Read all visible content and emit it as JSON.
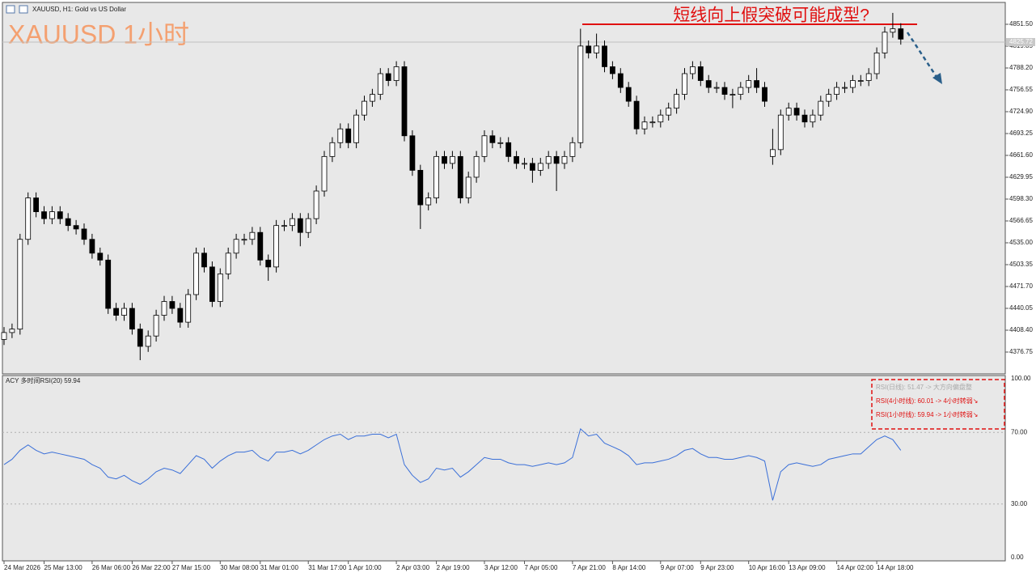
{
  "header": {
    "symbol_label": "XAUUSD, H1:  Gold vs US Dollar",
    "title": "XAUUSD 1小时"
  },
  "chart_data": [
    {
      "type": "candlestick",
      "annotation": "短线向上假突破可能成型?",
      "current_price": 4825.72,
      "ylim": [
        4345.1,
        4883.15
      ],
      "yticks": [
        {
          "value": 4851.5,
          "label": "4851.50"
        },
        {
          "value": 4819.85,
          "label": "4819.85"
        },
        {
          "value": 4788.2,
          "label": "4788.20"
        },
        {
          "value": 4756.55,
          "label": "4756.55"
        },
        {
          "value": 4724.9,
          "label": "4724.90"
        },
        {
          "value": 4693.25,
          "label": "4693.25"
        },
        {
          "value": 4661.6,
          "label": "4661.60"
        },
        {
          "value": 4629.95,
          "label": "4629.95"
        },
        {
          "value": 4598.3,
          "label": "4598.30"
        },
        {
          "value": 4566.65,
          "label": "4566.65"
        },
        {
          "value": 4535,
          "label": "4535.00"
        },
        {
          "value": 4503.35,
          "label": "4503.35"
        },
        {
          "value": 4471.7,
          "label": "4471.70"
        },
        {
          "value": 4440.05,
          "label": "4440.05"
        },
        {
          "value": 4408.4,
          "label": "4408.40"
        },
        {
          "value": 4376.75,
          "label": "4376.75"
        }
      ],
      "xticks": [
        {
          "value": 0,
          "label": "24 Mar 2026"
        },
        {
          "value": 5,
          "label": "25 Mar 13:00"
        },
        {
          "value": 11,
          "label": "26 Mar 06:00"
        },
        {
          "value": 16,
          "label": "26 Mar 22:00"
        },
        {
          "value": 21,
          "label": "27 Mar 15:00"
        },
        {
          "value": 27,
          "label": "30 Mar 08:00"
        },
        {
          "value": 32,
          "label": "31 Mar 01:00"
        },
        {
          "value": 38,
          "label": "31 Mar 17:00"
        },
        {
          "value": 43,
          "label": "1 Apr 10:00"
        },
        {
          "value": 49,
          "label": "2 Apr 03:00"
        },
        {
          "value": 54,
          "label": "2 Apr 19:00"
        },
        {
          "value": 60,
          "label": "3 Apr 12:00"
        },
        {
          "value": 65,
          "label": "7 Apr 05:00"
        },
        {
          "value": 71,
          "label": "7 Apr 21:00"
        },
        {
          "value": 76,
          "label": "8 Apr 14:00"
        },
        {
          "value": 82,
          "label": "9 Apr 07:00"
        },
        {
          "value": 87,
          "label": "9 Apr 23:00"
        },
        {
          "value": 93,
          "label": "10 Apr 16:00"
        },
        {
          "value": 98,
          "label": "13 Apr 09:00"
        },
        {
          "value": 104,
          "label": "14 Apr 02:00"
        },
        {
          "value": 109,
          "label": "14 Apr 18:00"
        }
      ],
      "open": [
        4395,
        4405,
        4410,
        4540,
        4600,
        4580,
        4570,
        4580,
        4570,
        4560,
        4555,
        4540,
        4520,
        4510,
        4440,
        4430,
        4440,
        4410,
        4385,
        4400,
        4430,
        4450,
        4440,
        4420,
        4460,
        4520,
        4500,
        4450,
        4490,
        4520,
        4540,
        4540,
        4550,
        4510,
        4500,
        4560,
        4560,
        4570,
        4550,
        4570,
        4610,
        4660,
        4680,
        4700,
        4680,
        4720,
        4740,
        4750,
        4780,
        4770,
        4790,
        4690,
        4640,
        4590,
        4600,
        4660,
        4650,
        4660,
        4600,
        4630,
        4660,
        4690,
        4680,
        4680,
        4660,
        4650,
        4650,
        4640,
        4650,
        4660,
        4650,
        4660,
        4680,
        4820,
        4810,
        4820,
        4790,
        4780,
        4760,
        4740,
        4700,
        4710,
        4710,
        4720,
        4730,
        4750,
        4780,
        4790,
        4770,
        4760,
        4760,
        4750,
        4750,
        4760,
        4770,
        4760,
        4660,
        4670,
        4720,
        4730,
        4720,
        4710,
        4720,
        4740,
        4750,
        4760,
        4760,
        4770,
        4770,
        4780,
        4810,
        4840,
        4845
      ],
      "high": [
        4413,
        4418,
        4548,
        4608,
        4608,
        4588,
        4588,
        4588,
        4578,
        4568,
        4563,
        4548,
        4528,
        4518,
        4448,
        4448,
        4448,
        4418,
        4408,
        4438,
        4458,
        4458,
        4448,
        4468,
        4528,
        4528,
        4508,
        4498,
        4528,
        4548,
        4548,
        4558,
        4558,
        4518,
        4568,
        4568,
        4578,
        4578,
        4578,
        4618,
        4668,
        4688,
        4708,
        4708,
        4728,
        4748,
        4758,
        4788,
        4788,
        4798,
        4798,
        4698,
        4648,
        4608,
        4668,
        4668,
        4668,
        4668,
        4638,
        4668,
        4698,
        4698,
        4688,
        4688,
        4668,
        4658,
        4658,
        4658,
        4668,
        4668,
        4668,
        4688,
        4845,
        4828,
        4838,
        4828,
        4798,
        4788,
        4768,
        4748,
        4718,
        4718,
        4728,
        4738,
        4758,
        4788,
        4798,
        4798,
        4778,
        4768,
        4768,
        4758,
        4768,
        4778,
        4788,
        4768,
        4700,
        4728,
        4738,
        4738,
        4728,
        4728,
        4748,
        4758,
        4768,
        4768,
        4778,
        4778,
        4788,
        4818,
        4848,
        4868,
        4853
      ],
      "low": [
        4387,
        4397,
        4402,
        4532,
        4572,
        4562,
        4562,
        4562,
        4552,
        4547,
        4532,
        4512,
        4502,
        4432,
        4422,
        4422,
        4402,
        4365,
        4377,
        4392,
        4422,
        4432,
        4412,
        4412,
        4452,
        4492,
        4442,
        4442,
        4482,
        4512,
        4532,
        4532,
        4502,
        4480,
        4492,
        4552,
        4552,
        4530,
        4542,
        4562,
        4602,
        4652,
        4672,
        4672,
        4672,
        4712,
        4732,
        4742,
        4762,
        4762,
        4682,
        4632,
        4555,
        4582,
        4592,
        4642,
        4642,
        4592,
        4592,
        4622,
        4652,
        4672,
        4672,
        4652,
        4642,
        4642,
        4622,
        4632,
        4642,
        4610,
        4642,
        4652,
        4672,
        4802,
        4802,
        4782,
        4772,
        4752,
        4732,
        4692,
        4692,
        4702,
        4702,
        4712,
        4722,
        4742,
        4772,
        4762,
        4752,
        4752,
        4742,
        4730,
        4742,
        4752,
        4752,
        4732,
        4648,
        4662,
        4712,
        4712,
        4702,
        4702,
        4712,
        4732,
        4742,
        4752,
        4752,
        4762,
        4762,
        4772,
        4802,
        4832,
        4822
      ],
      "close": [
        4405,
        4410,
        4540,
        4600,
        4580,
        4570,
        4580,
        4570,
        4560,
        4555,
        4540,
        4520,
        4510,
        4440,
        4430,
        4440,
        4410,
        4385,
        4400,
        4430,
        4450,
        4440,
        4420,
        4460,
        4520,
        4500,
        4450,
        4490,
        4520,
        4540,
        4540,
        4550,
        4510,
        4500,
        4560,
        4560,
        4570,
        4550,
        4570,
        4610,
        4660,
        4680,
        4700,
        4680,
        4720,
        4740,
        4750,
        4780,
        4770,
        4790,
        4690,
        4640,
        4590,
        4600,
        4660,
        4650,
        4660,
        4600,
        4630,
        4660,
        4690,
        4680,
        4680,
        4660,
        4650,
        4650,
        4640,
        4650,
        4660,
        4650,
        4660,
        4680,
        4820,
        4810,
        4820,
        4790,
        4780,
        4760,
        4740,
        4700,
        4710,
        4710,
        4720,
        4730,
        4750,
        4780,
        4790,
        4770,
        4760,
        4760,
        4750,
        4750,
        4760,
        4770,
        4760,
        4740,
        4670,
        4720,
        4730,
        4720,
        4710,
        4720,
        4740,
        4750,
        4760,
        4760,
        4770,
        4770,
        4780,
        4810,
        4840,
        4845,
        4830
      ]
    },
    {
      "type": "line",
      "title": "ACY 多时间RSI(20) 59.94",
      "color": "#3a6fd8",
      "ylim": [
        0,
        100
      ],
      "yticks": [
        {
          "value": 100,
          "label": "100.00"
        },
        {
          "value": 70,
          "label": "70.00"
        },
        {
          "value": 30,
          "label": "30.00"
        },
        {
          "value": 0,
          "label": "0.00"
        }
      ],
      "notes": [
        {
          "text": "RSI(日线): 51.47 -> 大方向偏盘整",
          "color": "#a8a8a8"
        },
        {
          "text": "RSI(4小时线): 60.01 -> 4小时转弱↘",
          "color": "#e01010"
        },
        {
          "text": "RSI(1小时线): 59.94 -> 1小时转弱↘",
          "color": "#e01010"
        }
      ],
      "values": [
        52,
        55,
        60,
        63,
        60,
        58,
        59,
        58,
        57,
        56,
        55,
        52,
        50,
        45,
        44,
        46,
        43,
        41,
        44,
        48,
        50,
        49,
        47,
        52,
        57,
        55,
        50,
        54,
        57,
        59,
        59,
        60,
        56,
        54,
        59,
        59,
        60,
        58,
        60,
        63,
        66,
        68,
        69,
        66,
        68,
        68,
        69,
        69,
        67,
        69,
        52,
        46,
        42,
        44,
        50,
        49,
        50,
        45,
        48,
        52,
        56,
        55,
        55,
        53,
        52,
        52,
        51,
        52,
        53,
        52,
        53,
        56,
        72,
        68,
        69,
        64,
        62,
        60,
        57,
        52,
        53,
        53,
        54,
        55,
        57,
        60,
        61,
        58,
        56,
        56,
        55,
        55,
        56,
        57,
        56,
        54,
        32,
        48,
        52,
        53,
        52,
        51,
        52,
        55,
        56,
        57,
        58,
        58,
        62,
        66,
        68,
        66,
        60
      ]
    }
  ]
}
